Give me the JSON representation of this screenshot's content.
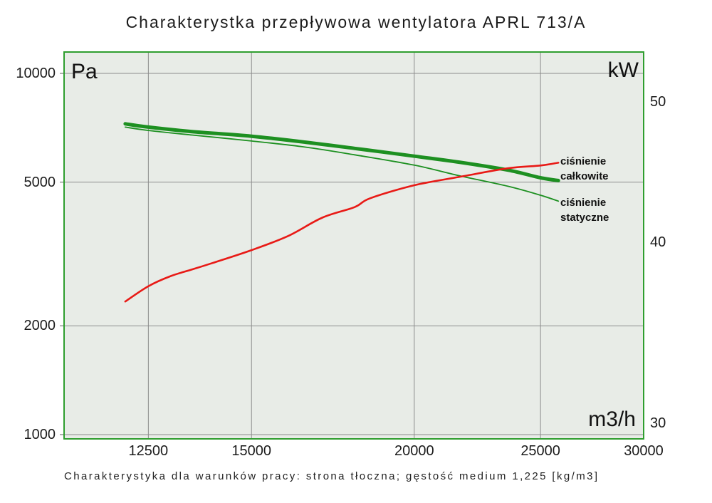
{
  "chart_data": {
    "type": "line",
    "title": "Charakterystka przepływowa wentylatora APRL 713/A",
    "caption": "Charakterystyka dla warunków pracy: strona tłoczna; gęstość medium 1,225 [kg/m3]",
    "plot_background": "#e8ece7",
    "border_color": "#2f9e2f",
    "gridline_color": "#8c8c8c",
    "x_axis": {
      "label": "m3/h",
      "scale": "log",
      "min": 10770,
      "max": 30000,
      "ticks": [
        12500,
        15000,
        20000,
        25000,
        30000
      ]
    },
    "y_axis_left": {
      "label": "Pa",
      "scale": "log",
      "min": 973,
      "max": 11460,
      "ticks": [
        1000,
        2000,
        5000,
        10000
      ]
    },
    "y_axis_right": {
      "label": "kW",
      "scale": "log",
      "min": 29.25,
      "max": 54.15,
      "ticks": [
        30,
        40,
        50
      ]
    },
    "series": [
      {
        "name": "ciśnienie całkowite",
        "axis": "left",
        "color": "#1d9021",
        "width": 5,
        "points": [
          [
            12000,
            7250
          ],
          [
            12500,
            7100
          ],
          [
            13500,
            6900
          ],
          [
            15000,
            6700
          ],
          [
            16500,
            6450
          ],
          [
            18000,
            6200
          ],
          [
            20000,
            5900
          ],
          [
            21700,
            5670
          ],
          [
            23600,
            5400
          ],
          [
            25000,
            5140
          ],
          [
            25800,
            5050
          ]
        ]
      },
      {
        "name": "ciśnienie statyczne",
        "axis": "left",
        "color": "#1d9021",
        "width": 1.8,
        "points": [
          [
            12000,
            7100
          ],
          [
            12500,
            6950
          ],
          [
            13500,
            6750
          ],
          [
            15000,
            6500
          ],
          [
            16500,
            6250
          ],
          [
            18000,
            5950
          ],
          [
            20000,
            5570
          ],
          [
            21700,
            5200
          ],
          [
            23600,
            4870
          ],
          [
            25000,
            4600
          ],
          [
            25800,
            4430
          ]
        ]
      },
      {
        "name": "kW",
        "axis": "right",
        "color": "#e81a16",
        "width": 2.6,
        "points": [
          [
            12000,
            36.4
          ],
          [
            12500,
            37.3
          ],
          [
            13000,
            37.9
          ],
          [
            13500,
            38.3
          ],
          [
            14000,
            38.7
          ],
          [
            15000,
            39.5
          ],
          [
            16000,
            40.4
          ],
          [
            17000,
            41.6
          ],
          [
            18000,
            42.3
          ],
          [
            18500,
            42.9
          ],
          [
            20000,
            43.8
          ],
          [
            21700,
            44.4
          ],
          [
            23600,
            45.0
          ],
          [
            25000,
            45.2
          ],
          [
            25800,
            45.4
          ]
        ]
      }
    ],
    "curve_labels": [
      {
        "line1": "ciśnienie",
        "line2": "całkowite"
      },
      {
        "line1": "ciśnienie",
        "line2": "statyczne"
      }
    ]
  }
}
